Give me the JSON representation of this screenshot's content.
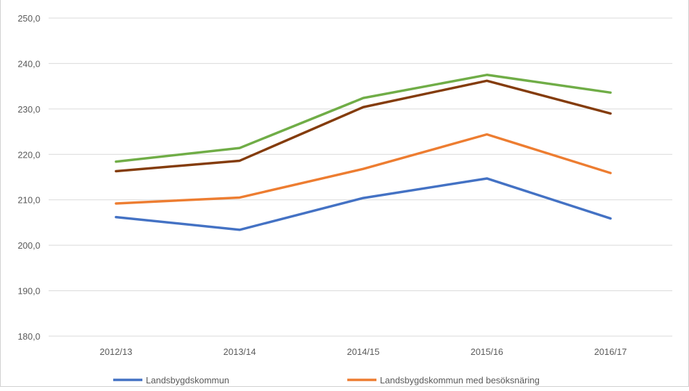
{
  "chart_data": {
    "type": "line",
    "title": "",
    "xlabel": "",
    "ylabel": "",
    "categories": [
      "2012/13",
      "2013/14",
      "2014/15",
      "2015/16",
      "2016/17"
    ],
    "y_tick_labels": [
      "250,0",
      "240,0",
      "230,0",
      "220,0",
      "210,0",
      "200,0",
      "190,0",
      "180,0"
    ],
    "ylim": [
      180,
      250
    ],
    "grid": true,
    "legend_position": "bottom",
    "series": [
      {
        "name": "Landsbygdskommun",
        "color": "#4472C4",
        "values": [
          206.2,
          203.4,
          210.4,
          214.7,
          205.9
        ]
      },
      {
        "name": "Landsbygdskommun med besöksnäring",
        "color": "#ED7D31",
        "values": [
          209.2,
          210.5,
          216.8,
          224.4,
          215.9
        ]
      },
      {
        "name": "",
        "color": "#843C0C",
        "values": [
          216.3,
          218.6,
          230.4,
          236.2,
          229.0
        ]
      },
      {
        "name": "",
        "color": "#70AD47",
        "values": [
          218.4,
          221.4,
          232.4,
          237.5,
          233.6
        ]
      }
    ]
  }
}
